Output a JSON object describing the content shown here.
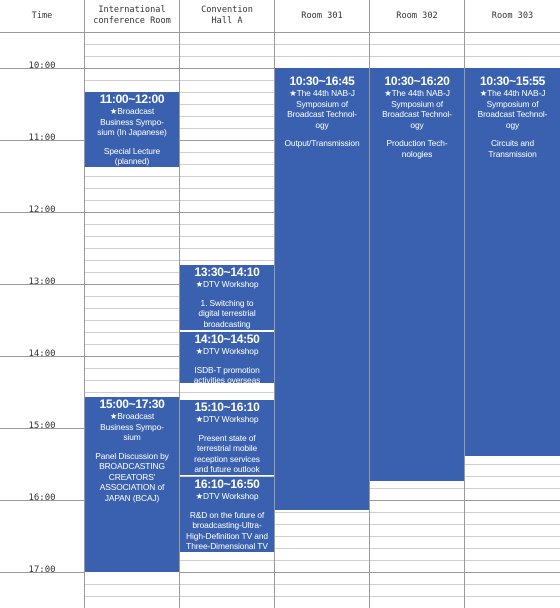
{
  "header": {
    "time": "Time",
    "rooms": [
      "International\nconference Room",
      "Convention\nHall A",
      "Room 301",
      "Room 302",
      "Room 303"
    ]
  },
  "time_labels": [
    "10:00",
    "11:00",
    "12:00",
    "13:00",
    "14:00",
    "15:00",
    "16:00",
    "17:00"
  ],
  "sessions": [
    {
      "time": "11:00~12:00",
      "title": "★Broadcast\nBusiness Sympo-\nsium (In Japanese)",
      "detail": "Special Lecture\n(planned)"
    },
    {
      "time": "15:00~17:30",
      "title": "★Broadcast\nBusiness Sympo-\nsium",
      "detail": "Panel Discussion by\nBROADCASTING\nCREATORS'\nASSOCIATION of\nJAPAN (BCAJ)"
    },
    {
      "time": "13:30~14:10",
      "title": "★DTV Workshop",
      "detail": "1. Switching to\ndigital terrestrial\nbroadcasting"
    },
    {
      "time": "14:10~14:50",
      "title": "★DTV Workshop",
      "detail": "ISDB-T promotion\nactivities overseas"
    },
    {
      "time": "15:10~16:10",
      "title": "★DTV Workshop",
      "detail": "Present state of\nterrestrial mobile\nreception services\nand future outlook"
    },
    {
      "time": "16:10~16:50",
      "title": "★DTV Workshop",
      "detail": "R&D on the future of\nbroadcasting-Ultra-\nHigh-Definition TV and\nThree-Dimensional TV"
    },
    {
      "time": "10:30~16:45",
      "title": "★The 44th NAB-J\nSymposium of\nBroadcast Technol-\nogy",
      "detail": "Output/Transmission"
    },
    {
      "time": "10:30~16:20",
      "title": "★The 44th NAB-J\nSymposium of\nBroadcast Technol-\nogy",
      "detail": "Production Tech-\nnologies"
    },
    {
      "time": "10:30~15:55",
      "title": "★The 44th NAB-J\nSymposium of\nBroadcast Technol-\nogy",
      "detail": "Circuits and\nTransmission"
    }
  ],
  "colors": {
    "session_fill": "#3a61b0",
    "session_text": "#ffffff",
    "grid_major": "#9a9a9a",
    "grid_minor": "#cfcfcf"
  }
}
